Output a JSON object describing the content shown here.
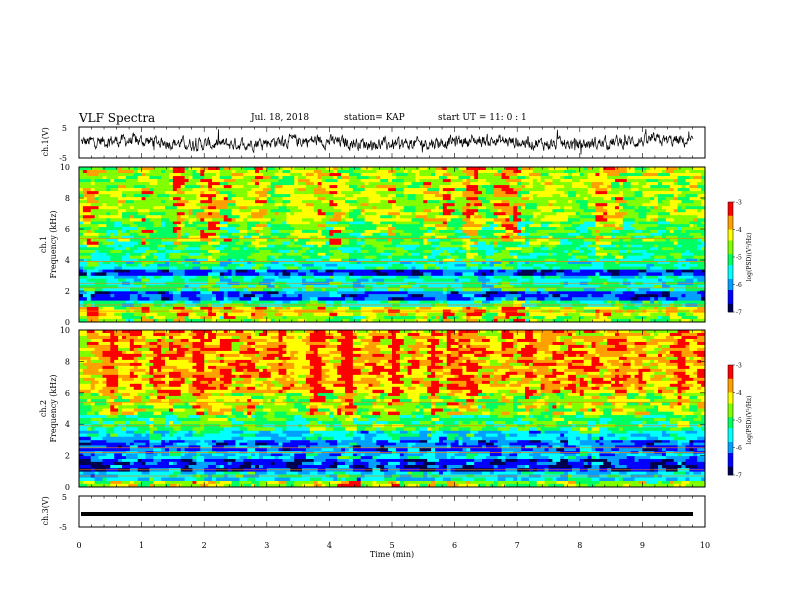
{
  "header": {
    "title": "VLF Spectra",
    "date": "Jul. 18, 2018",
    "station": "station= KAP",
    "start": "start UT = 11: 0 : 1"
  },
  "colors": {
    "scale": [
      "#000050",
      "#0000ff",
      "#00a0ff",
      "#00ffff",
      "#00ff60",
      "#80ff00",
      "#ffff00",
      "#ffa000",
      "#ff0000",
      "#ffffff"
    ]
  },
  "chart_data": [
    {
      "type": "line",
      "panel": "ch1-waveform",
      "ylabel": "ch.1(V)",
      "ylim": [
        -5,
        5
      ],
      "yticks": [
        "5",
        "-5"
      ],
      "xlim": [
        0,
        10
      ],
      "trace": "noisy waveform around 0 V, amplitude about ±2 V"
    },
    {
      "type": "heatmap",
      "panel": "ch1-spectrogram",
      "ylabel": "ch.1\nFrequency (kHz)",
      "ylim": [
        0,
        10
      ],
      "yticks": [
        "0",
        "2",
        "4",
        "6",
        "8",
        "10"
      ],
      "xlim": [
        0,
        10
      ],
      "bands": [
        {
          "from": 0.0,
          "to": 0.4,
          "level": -4.6
        },
        {
          "from": 0.4,
          "to": 1.0,
          "level": -4.2
        },
        {
          "from": 1.0,
          "to": 1.4,
          "level": -5.2
        },
        {
          "from": 1.4,
          "to": 2.0,
          "level": -6.2
        },
        {
          "from": 2.0,
          "to": 2.4,
          "level": -5.2
        },
        {
          "from": 2.4,
          "to": 3.0,
          "level": -5.4
        },
        {
          "from": 3.0,
          "to": 3.4,
          "level": -6.3
        },
        {
          "from": 3.4,
          "to": 4.1,
          "level": -5.3
        },
        {
          "from": 4.1,
          "to": 5.0,
          "level": -5.0
        },
        {
          "from": 5.0,
          "to": 6.5,
          "level": -4.8
        },
        {
          "from": 6.5,
          "to": 10.0,
          "level": -4.4
        }
      ],
      "colorbar": {
        "label": "log(PSD)(V²/Hz)",
        "ticks": [
          "-3",
          "-4",
          "-5",
          "-6",
          "-7"
        ],
        "range": [
          -7,
          -3
        ]
      }
    },
    {
      "type": "heatmap",
      "panel": "ch2-spectrogram",
      "ylabel": "ch.2\nFrequency (kHz)",
      "ylim": [
        0,
        10
      ],
      "yticks": [
        "0",
        "2",
        "4",
        "6",
        "8",
        "10"
      ],
      "xlim": [
        0,
        10
      ],
      "bands": [
        {
          "from": 0.0,
          "to": 0.4,
          "level": -4.6
        },
        {
          "from": 0.4,
          "to": 1.0,
          "level": -5.6
        },
        {
          "from": 1.0,
          "to": 1.8,
          "level": -6.4
        },
        {
          "from": 1.8,
          "to": 2.3,
          "level": -5.8
        },
        {
          "from": 2.3,
          "to": 3.0,
          "level": -6.2
        },
        {
          "from": 3.0,
          "to": 3.6,
          "level": -5.6
        },
        {
          "from": 3.6,
          "to": 4.6,
          "level": -5.0
        },
        {
          "from": 4.6,
          "to": 6.0,
          "level": -4.5
        },
        {
          "from": 6.0,
          "to": 10.0,
          "level": -3.9
        }
      ],
      "colorbar": {
        "label": "log(PSD)(V²/Hz)",
        "ticks": [
          "-3",
          "-4",
          "-5",
          "-6",
          "-7"
        ],
        "range": [
          -7,
          -3
        ]
      }
    },
    {
      "type": "line",
      "panel": "ch3-waveform",
      "ylabel": "ch.3(V)",
      "ylim": [
        -5,
        5
      ],
      "yticks": [
        "5",
        "-5"
      ],
      "xlim": [
        0,
        10
      ],
      "trace": "flat thick line at about -2 V"
    }
  ],
  "xaxis": {
    "label": "Time (min)",
    "ticks": [
      "0",
      "1",
      "2",
      "3",
      "4",
      "5",
      "6",
      "7",
      "8",
      "9",
      "10"
    ]
  }
}
